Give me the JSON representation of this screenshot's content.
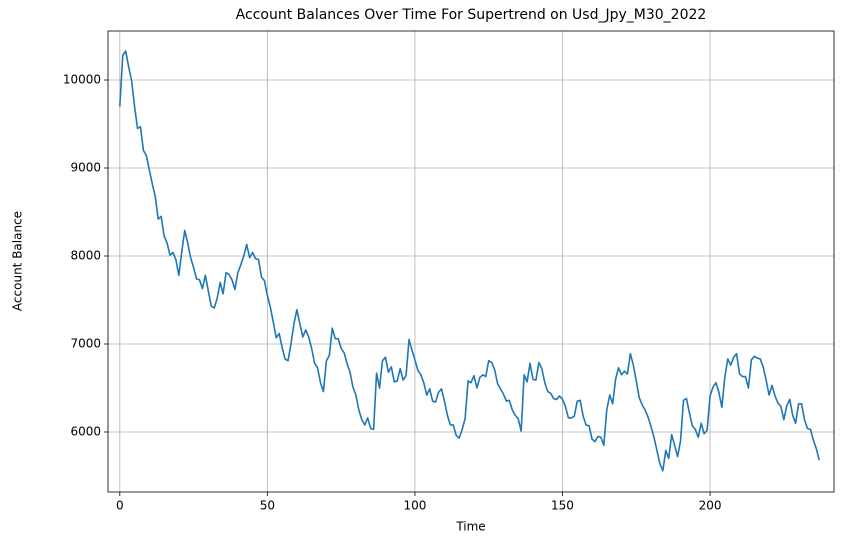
{
  "chart_data": {
    "type": "line",
    "title": "Account Balances Over Time For Supertrend on Usd_Jpy_M30_2022",
    "xlabel": "Time",
    "ylabel": "Account Balance",
    "color": "#1f77b4",
    "grid": true,
    "xlim": [
      -4,
      242
    ],
    "ylim": [
      5318,
      10557
    ],
    "xticks": [
      0,
      50,
      100,
      150,
      200
    ],
    "yticks": [
      6000,
      7000,
      8000,
      9000,
      10000
    ],
    "x": [
      0,
      1,
      2,
      3,
      4,
      5,
      6,
      7,
      8,
      9,
      10,
      11,
      12,
      13,
      14,
      15,
      16,
      17,
      18,
      19,
      20,
      21,
      22,
      23,
      24,
      25,
      26,
      27,
      28,
      29,
      30,
      31,
      32,
      33,
      34,
      35,
      36,
      37,
      38,
      39,
      40,
      41,
      42,
      43,
      44,
      45,
      46,
      47,
      48,
      49,
      50,
      51,
      52,
      53,
      54,
      55,
      56,
      57,
      58,
      59,
      60,
      61,
      62,
      63,
      64,
      65,
      66,
      67,
      68,
      69,
      70,
      71,
      72,
      73,
      74,
      75,
      76,
      77,
      78,
      79,
      80,
      81,
      82,
      83,
      84,
      85,
      86,
      87,
      88,
      89,
      90,
      91,
      92,
      93,
      94,
      95,
      96,
      97,
      98,
      99,
      100,
      101,
      102,
      103,
      104,
      105,
      106,
      107,
      108,
      109,
      110,
      111,
      112,
      113,
      114,
      115,
      116,
      117,
      118,
      119,
      120,
      121,
      122,
      123,
      124,
      125,
      126,
      127,
      128,
      129,
      130,
      131,
      132,
      133,
      134,
      135,
      136,
      137,
      138,
      139,
      140,
      141,
      142,
      143,
      144,
      145,
      146,
      147,
      148,
      149,
      150,
      151,
      152,
      153,
      154,
      155,
      156,
      157,
      158,
      159,
      160,
      161,
      162,
      163,
      164,
      165,
      166,
      167,
      168,
      169,
      170,
      171,
      172,
      173,
      174,
      175,
      176,
      177,
      178,
      179,
      180,
      181,
      182,
      183,
      184,
      185,
      186,
      187,
      188,
      189,
      190,
      191,
      192,
      193,
      194,
      195,
      196,
      197,
      198,
      199,
      200,
      201,
      202,
      203,
      204,
      205,
      206,
      207,
      208,
      209,
      210,
      211,
      212,
      213,
      214,
      215,
      216,
      217,
      218,
      219,
      220,
      221,
      222,
      223,
      224,
      225,
      226,
      227,
      228,
      229,
      230,
      231,
      232,
      233,
      234,
      235,
      236,
      237
    ],
    "values": [
      9700,
      10280,
      10330,
      10150,
      9990,
      9700,
      9450,
      9470,
      9200,
      9140,
      8980,
      8820,
      8680,
      8420,
      8450,
      8230,
      8150,
      8010,
      8040,
      7960,
      7780,
      8050,
      8290,
      8150,
      7980,
      7870,
      7740,
      7730,
      7630,
      7780,
      7600,
      7430,
      7410,
      7520,
      7700,
      7570,
      7810,
      7790,
      7730,
      7620,
      7810,
      7900,
      8000,
      8130,
      7980,
      8040,
      7970,
      7960,
      7760,
      7720,
      7550,
      7420,
      7250,
      7070,
      7120,
      6960,
      6830,
      6810,
      7000,
      7230,
      7390,
      7230,
      7080,
      7160,
      7080,
      6950,
      6780,
      6730,
      6560,
      6460,
      6810,
      6870,
      7180,
      7060,
      7060,
      6950,
      6900,
      6780,
      6680,
      6510,
      6420,
      6250,
      6140,
      6080,
      6160,
      6040,
      6030,
      6670,
      6500,
      6810,
      6850,
      6680,
      6740,
      6570,
      6580,
      6720,
      6590,
      6640,
      7050,
      6930,
      6820,
      6700,
      6650,
      6560,
      6420,
      6490,
      6350,
      6340,
      6450,
      6490,
      6350,
      6190,
      6080,
      6080,
      5960,
      5930,
      6030,
      6150,
      6580,
      6560,
      6640,
      6500,
      6620,
      6650,
      6630,
      6810,
      6790,
      6710,
      6550,
      6490,
      6430,
      6350,
      6360,
      6250,
      6190,
      6150,
      6010,
      6650,
      6570,
      6780,
      6600,
      6590,
      6790,
      6720,
      6560,
      6460,
      6440,
      6380,
      6370,
      6410,
      6370,
      6290,
      6160,
      6160,
      6180,
      6350,
      6360,
      6180,
      6080,
      6070,
      5920,
      5890,
      5950,
      5940,
      5850,
      6250,
      6420,
      6320,
      6600,
      6730,
      6650,
      6690,
      6660,
      6890,
      6760,
      6580,
      6390,
      6310,
      6250,
      6170,
      6060,
      5940,
      5790,
      5640,
      5560,
      5790,
      5700,
      5970,
      5850,
      5720,
      5900,
      6360,
      6380,
      6220,
      6070,
      6030,
      5940,
      6100,
      5980,
      6020,
      6410,
      6510,
      6560,
      6450,
      6280,
      6620,
      6830,
      6760,
      6850,
      6890,
      6660,
      6630,
      6630,
      6500,
      6820,
      6860,
      6840,
      6830,
      6740,
      6590,
      6420,
      6530,
      6410,
      6330,
      6290,
      6140,
      6300,
      6370,
      6190,
      6100,
      6320,
      6320,
      6140,
      6040,
      6030,
      5910,
      5810,
      5680
    ]
  }
}
